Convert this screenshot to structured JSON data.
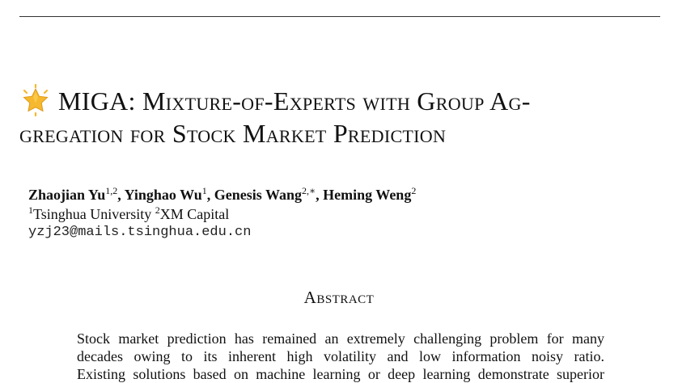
{
  "paper": {
    "title_line1": "MIGA: Mixture-of-Experts with Group Ag-",
    "title_line2": "gregation for Stock Market Prediction",
    "star_icon": "star-icon",
    "star_color": "#F5B82E",
    "authors": [
      {
        "name": "Zhaojian Yu",
        "sup": "1,2",
        "sep": ", "
      },
      {
        "name": "Yinghao Wu",
        "sup": "1",
        "sep": ", "
      },
      {
        "name": "Genesis Wang",
        "sup": "2,∗",
        "sep": ", "
      },
      {
        "name": "Heming Weng",
        "sup": "2",
        "sep": ""
      }
    ],
    "affiliations": [
      {
        "sup": "1",
        "name": "Tsinghua University"
      },
      {
        "sup": "2",
        "name": "XM Capital"
      }
    ],
    "email": "yzj23@mails.tsinghua.edu.cn",
    "abstract_heading": "Abstract",
    "abstract_lines": [
      "Stock market prediction has remained an extremely challenging problem for many",
      "decades owing to its inherent high volatility and low information noisy ratio.",
      "Existing solutions based on machine learning or deep learning demonstrate superior"
    ]
  }
}
